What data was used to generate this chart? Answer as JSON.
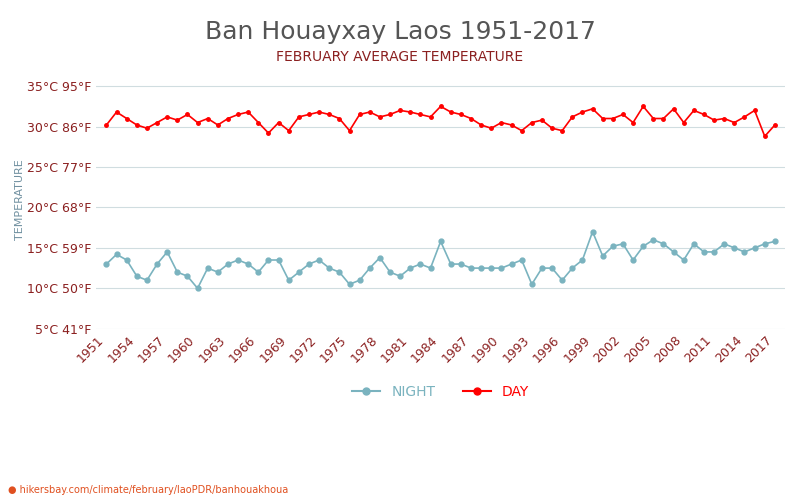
{
  "title": "Ban Houayxay Laos 1951-2017",
  "subtitle": "FEBRUARY AVERAGE TEMPERATURE",
  "ylabel": "TEMPERATURE",
  "watermark": "hikersbay.com/climate/february/laoPDR/banhouakhoua",
  "years": [
    1951,
    1952,
    1953,
    1954,
    1955,
    1956,
    1957,
    1958,
    1959,
    1960,
    1961,
    1962,
    1963,
    1964,
    1965,
    1966,
    1967,
    1968,
    1969,
    1970,
    1971,
    1972,
    1973,
    1974,
    1975,
    1976,
    1977,
    1978,
    1979,
    1980,
    1981,
    1982,
    1983,
    1984,
    1985,
    1986,
    1987,
    1988,
    1989,
    1990,
    1991,
    1992,
    1993,
    1994,
    1995,
    1996,
    1997,
    1998,
    1999,
    2000,
    2001,
    2002,
    2003,
    2004,
    2005,
    2006,
    2007,
    2008,
    2009,
    2010,
    2011,
    2012,
    2013,
    2014,
    2015,
    2016,
    2017
  ],
  "day_temps": [
    30.2,
    31.8,
    31.0,
    30.2,
    29.8,
    30.5,
    31.2,
    30.8,
    31.5,
    30.5,
    31.0,
    30.2,
    31.0,
    31.5,
    31.8,
    30.5,
    29.2,
    30.5,
    29.5,
    31.2,
    31.5,
    31.8,
    31.5,
    31.0,
    29.5,
    31.5,
    31.8,
    31.2,
    31.5,
    32.0,
    31.8,
    31.5,
    31.2,
    32.5,
    31.8,
    31.5,
    31.0,
    30.2,
    29.8,
    30.5,
    30.2,
    29.5,
    30.5,
    30.8,
    29.8,
    29.5,
    31.2,
    31.8,
    32.2,
    31.0,
    31.0,
    31.5,
    30.5,
    32.5,
    31.0,
    31.0,
    32.2,
    30.5,
    32.0,
    31.5,
    30.8,
    31.0,
    30.5,
    31.2,
    32.0,
    28.8,
    30.2
  ],
  "night_temps": [
    13.0,
    14.2,
    13.5,
    11.5,
    11.0,
    13.0,
    14.5,
    12.0,
    11.5,
    10.0,
    12.5,
    12.0,
    13.0,
    13.5,
    13.0,
    12.0,
    13.5,
    13.5,
    11.0,
    12.0,
    13.0,
    13.5,
    12.5,
    12.0,
    10.5,
    11.0,
    12.5,
    13.8,
    12.0,
    11.5,
    12.5,
    13.0,
    12.5,
    15.8,
    13.0,
    13.0,
    12.5,
    12.5,
    12.5,
    12.5,
    13.0,
    13.5,
    10.5,
    12.5,
    12.5,
    11.0,
    12.5,
    13.5,
    17.0,
    14.0,
    15.2,
    15.5,
    13.5,
    15.2,
    16.0,
    15.5,
    14.5,
    13.5,
    15.5,
    14.5,
    14.5,
    15.5,
    15.0,
    14.5,
    15.0,
    15.5,
    15.8
  ],
  "yticks_c": [
    5,
    10,
    15,
    20,
    25,
    30,
    35
  ],
  "yticks_f": [
    41,
    50,
    59,
    68,
    77,
    86,
    95
  ],
  "ylim": [
    5,
    37
  ],
  "xlim_start": 1950,
  "xlim_end": 2018,
  "xtick_years": [
    1951,
    1954,
    1957,
    1960,
    1963,
    1966,
    1969,
    1972,
    1975,
    1978,
    1981,
    1984,
    1987,
    1990,
    1993,
    1996,
    1999,
    2002,
    2005,
    2008,
    2011,
    2014,
    2017
  ],
  "day_color": "#ff0000",
  "night_color": "#7ab3bf",
  "title_color": "#555555",
  "subtitle_color": "#8b2020",
  "ylabel_color": "#7090a0",
  "tick_color": "#8b2020",
  "grid_color": "#d0dde0",
  "watermark_color": "#e05020",
  "background_color": "#ffffff",
  "legend_night_color": "#7ab3bf",
  "legend_day_color": "#ff0000",
  "title_fontsize": 18,
  "subtitle_fontsize": 10,
  "tick_fontsize": 9,
  "ylabel_fontsize": 8,
  "legend_fontsize": 10
}
